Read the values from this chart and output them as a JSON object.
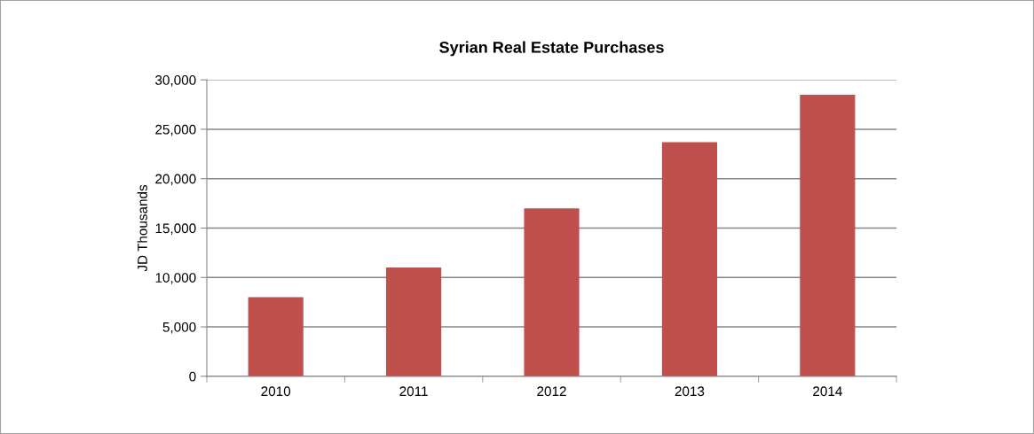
{
  "chart_data": {
    "type": "bar",
    "title": "Syrian Real Estate Purchases",
    "ylabel": "JD Thousands",
    "categories": [
      "2010",
      "2011",
      "2012",
      "2013",
      "2014"
    ],
    "values": [
      8000,
      11000,
      17000,
      23700,
      28500
    ],
    "color": "#c0504d",
    "ylim": [
      0,
      30000
    ],
    "yticks": [
      {
        "value": 0,
        "label": "0"
      },
      {
        "value": 5000,
        "label": "5,000"
      },
      {
        "value": 10000,
        "label": "10,000"
      },
      {
        "value": 15000,
        "label": "15,000"
      },
      {
        "value": 20000,
        "label": "20,000"
      },
      {
        "value": 25000,
        "label": "25,000"
      },
      {
        "value": 30000,
        "label": "30,000"
      }
    ],
    "grid": "y",
    "legend": false
  }
}
